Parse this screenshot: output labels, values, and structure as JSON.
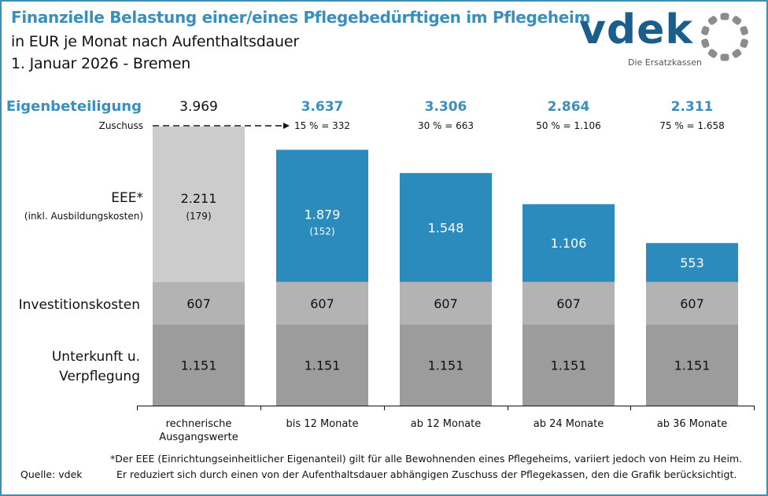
{
  "header": {
    "title": "Finanzielle Belastung einer/eines Pflegebedürftigen im Pflegeheim",
    "subtitle1": "in EUR je Monat nach Aufenthaltsdauer",
    "subtitle2": "1. Januar 2026 - Bremen"
  },
  "logo": {
    "name": "vdek",
    "tagline": "Die Ersatzkassen"
  },
  "colors": {
    "title_blue": "#3a8fbc",
    "eee_blue": "#2a8bbc",
    "eee_base_gray": "#cccccc",
    "invest_gray": "#b3b3b3",
    "unterkunft_gray": "#9c9c9c",
    "frame": "#3d8db5"
  },
  "chart_data": {
    "type": "bar",
    "stacked": true,
    "title": "Finanzielle Belastung einer/eines Pflegebedürftigen im Pflegeheim",
    "ylabel": "EUR je Monat",
    "categories": [
      "rechnerische Ausgangswerte",
      "bis 12 Monate",
      "ab 12 Monate",
      "ab 24 Monate",
      "ab 36 Monate"
    ],
    "category_labels": [
      [
        "rechnerische",
        "Ausgangswerte"
      ],
      [
        "bis 12 Monate"
      ],
      [
        "ab 12 Monate"
      ],
      [
        "ab 24 Monate"
      ],
      [
        "ab 36 Monate"
      ]
    ],
    "series": [
      {
        "name": "Unterkunft u. Verpflegung",
        "label_lines": [
          "Unterkunft u.",
          "Verpflegung"
        ],
        "values": [
          1151,
          1151,
          1151,
          1151,
          1151
        ],
        "labels": [
          "1.151",
          "1.151",
          "1.151",
          "1.151",
          "1.151"
        ]
      },
      {
        "name": "Investitionskosten",
        "label_lines": [
          "Investitionskosten"
        ],
        "values": [
          607,
          607,
          607,
          607,
          607
        ],
        "labels": [
          "607",
          "607",
          "607",
          "607",
          "607"
        ]
      },
      {
        "name": "EEE* (inkl. Ausbildungskosten)",
        "label_lines": [
          "EEE*",
          "(inkl. Ausbildungskosten)"
        ],
        "values": [
          2211,
          1879,
          1548,
          1106,
          553
        ],
        "labels": [
          "2.211",
          "1.879",
          "1.548",
          "1.106",
          "553"
        ],
        "sub_labels": [
          "(179)",
          "(152)",
          "",
          "",
          ""
        ]
      }
    ],
    "totals_label": "Eigenbeteiligung",
    "totals": [
      "3.969",
      "3.637",
      "3.306",
      "2.864",
      "2.311"
    ],
    "zuschuss_label": "Zuschuss",
    "zuschuss": [
      "",
      "15 % = 332",
      "30 % = 663",
      "50 % = 1.106",
      "75 % = 1.658"
    ],
    "ylim": [
      0,
      4000
    ]
  },
  "footer": {
    "source": "Quelle: vdek",
    "note1": "*Der EEE (Einrichtungseinheitlicher Eigenanteil) gilt für alle Bewohnenden eines Pflegeheims, variiert jedoch von Heim zu Heim.",
    "note2": "Er reduziert sich durch einen von der Aufenthaltsdauer abhängigen Zuschuss der Pflegekassen, den die Grafik berücksichtigt."
  }
}
